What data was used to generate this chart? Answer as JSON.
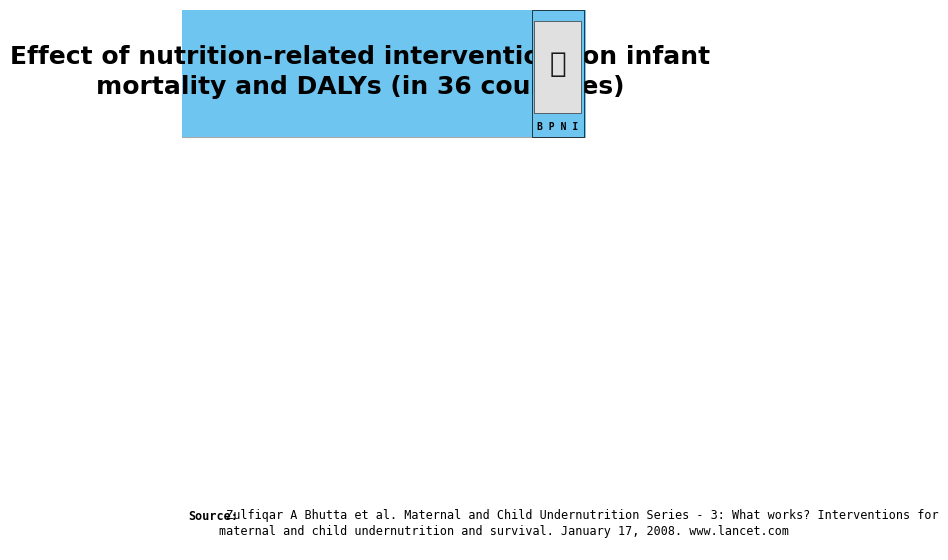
{
  "title_line1": "Effect of nutrition-related interventions on infant",
  "title_line2": "mortality and DALYs (in 36 countries)",
  "title_bg_color": "#6ec6f0",
  "title_text_color": "#000000",
  "body_bg_color": "#ffffff",
  "source_bold": "Source:",
  "source_text": " Zulfiqar A Bhutta et al. Maternal and Child Undernutrition Series - 3: What works? Interventions for\nmaternal and child undernutrition and survival. January 17, 2008. www.lancet.com",
  "source_fontsize": 8.5,
  "title_fontsize": 18,
  "logo_label": "BPNI"
}
